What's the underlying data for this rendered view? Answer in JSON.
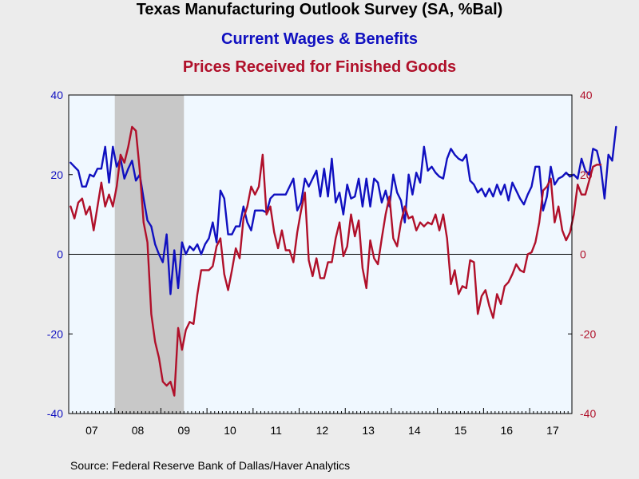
{
  "title": "Texas Manufacturing Outlook Survey (SA, %Bal)",
  "source": "Source:  Federal Reserve Bank of Dallas/Haver Analytics",
  "colors": {
    "wages": "#1010c0",
    "prices": "#b0102a",
    "background": "#ececec",
    "plot_background": "#f0f8ff",
    "recession": "#c8c8c8",
    "axis": "#000000"
  },
  "chart_data": {
    "type": "line",
    "x_unit": "month",
    "x_range": [
      "2007-01",
      "2017-11"
    ],
    "x_tick_labels": [
      "07",
      "08",
      "09",
      "10",
      "11",
      "12",
      "13",
      "14",
      "15",
      "16",
      "17"
    ],
    "ylim": [
      -40,
      40
    ],
    "y_ticks": [
      -40,
      -20,
      0,
      20,
      40
    ],
    "y_tick_labels": [
      "-40",
      "-20",
      "0",
      "20",
      "40"
    ],
    "y2_tick_labels": [
      "-40",
      "-20",
      "0",
      "20",
      "40"
    ],
    "zero_line": true,
    "grid": false,
    "recession_shading": [
      {
        "start": "2008-01",
        "end": "2009-06"
      }
    ],
    "series": [
      {
        "name": "Current Wages & Benefits",
        "axis": "left",
        "color": "#1010c0",
        "start": "2007-01",
        "values": [
          23.0,
          22.0,
          21.0,
          17.0,
          17.0,
          20.0,
          19.5,
          21.5,
          21.5,
          27.0,
          18.0,
          27.0,
          22.0,
          24.0,
          19.0,
          21.5,
          23.5,
          18.5,
          20.0,
          14.0,
          8.5,
          7.0,
          2.5,
          0.0,
          -2.0,
          5.0,
          -10.0,
          1.0,
          -8.5,
          3.0,
          0.0,
          2.0,
          1.0,
          2.5,
          0.0,
          2.5,
          4.0,
          8.0,
          3.0,
          16.0,
          14.0,
          5.0,
          5.0,
          7.0,
          7.0,
          12.0,
          8.0,
          6.0,
          11.0,
          11.0,
          11.0,
          10.5,
          14.0,
          15.0,
          15.0,
          15.0,
          15.0,
          17.0,
          19.0,
          11.0,
          13.0,
          19.0,
          17.0,
          19.0,
          21.0,
          14.5,
          21.5,
          14.5,
          24.0,
          13.0,
          15.5,
          10.0,
          17.5,
          14.0,
          14.5,
          19.0,
          12.0,
          19.0,
          12.0,
          19.0,
          18.0,
          13.0,
          16.0,
          12.0,
          20.0,
          15.5,
          13.5,
          8.0,
          20.0,
          15.0,
          20.5,
          18.0,
          27.0,
          21.0,
          22.0,
          20.5,
          19.5,
          19.0,
          24.0,
          26.5,
          25.0,
          24.0,
          23.5,
          25.0,
          18.5,
          17.5,
          15.5,
          16.5,
          14.5,
          16.5,
          14.5,
          17.5,
          15.0,
          17.5,
          13.5,
          18.0,
          16.0,
          14.0,
          12.5,
          15.0,
          17.0,
          22.0,
          22.0,
          11.0,
          14.5,
          22.0,
          17.5,
          19.0,
          19.5,
          20.5,
          19.5,
          20.0,
          19.0,
          24.0,
          21.0,
          20.0,
          26.5,
          26.0,
          22.0,
          14.0,
          25.0,
          23.5,
          32.0
        ]
      },
      {
        "name": "Prices Received for Finished Goods",
        "axis": "right",
        "color": "#b0102a",
        "start": "2007-01",
        "values": [
          12.0,
          9.0,
          13.0,
          14.0,
          10.0,
          12.0,
          6.0,
          12.0,
          18.0,
          12.0,
          15.0,
          12.0,
          17.0,
          25.0,
          23.0,
          27.0,
          32.0,
          31.0,
          21.0,
          8.0,
          3.0,
          -15.0,
          -22.0,
          -26.0,
          -32.0,
          -33.0,
          -32.0,
          -35.5,
          -18.5,
          -24.0,
          -19.0,
          -17.0,
          -17.5,
          -10.0,
          -4.0,
          -4.0,
          -4.0,
          -3.0,
          2.0,
          4.0,
          -5.0,
          -9.0,
          -4.0,
          1.5,
          -1.0,
          9.0,
          12.0,
          17.0,
          15.0,
          17.0,
          25.0,
          10.0,
          12.0,
          5.5,
          1.5,
          6.0,
          1.0,
          1.0,
          -2.0,
          5.5,
          11.0,
          15.5,
          -1.5,
          -5.5,
          -1.0,
          -6.0,
          -6.0,
          -2.0,
          -2.0,
          4.0,
          8.0,
          -0.5,
          2.0,
          10.0,
          4.5,
          8.5,
          -3.5,
          -8.5,
          3.5,
          -1.0,
          -2.5,
          4.0,
          10.0,
          14.5,
          4.0,
          2.0,
          8.0,
          12.0,
          9.0,
          9.5,
          6.0,
          8.0,
          7.0,
          8.0,
          7.5,
          10.0,
          6.0,
          10.0,
          4.0,
          -7.5,
          -4.0,
          -10.0,
          -8.0,
          -8.5,
          -1.5,
          -2.0,
          -15.0,
          -10.5,
          -9.0,
          -13.0,
          -16.0,
          -10.0,
          -12.5,
          -8.0,
          -7.0,
          -5.0,
          -2.5,
          -4.0,
          -4.5,
          0.0,
          0.5,
          3.0,
          8.0,
          16.0,
          17.0,
          19.0,
          8.0,
          12.0,
          6.0,
          3.5,
          5.5,
          10.0,
          17.5,
          15.0,
          15.0,
          18.5,
          22.0,
          22.5,
          22.5
        ]
      }
    ]
  }
}
